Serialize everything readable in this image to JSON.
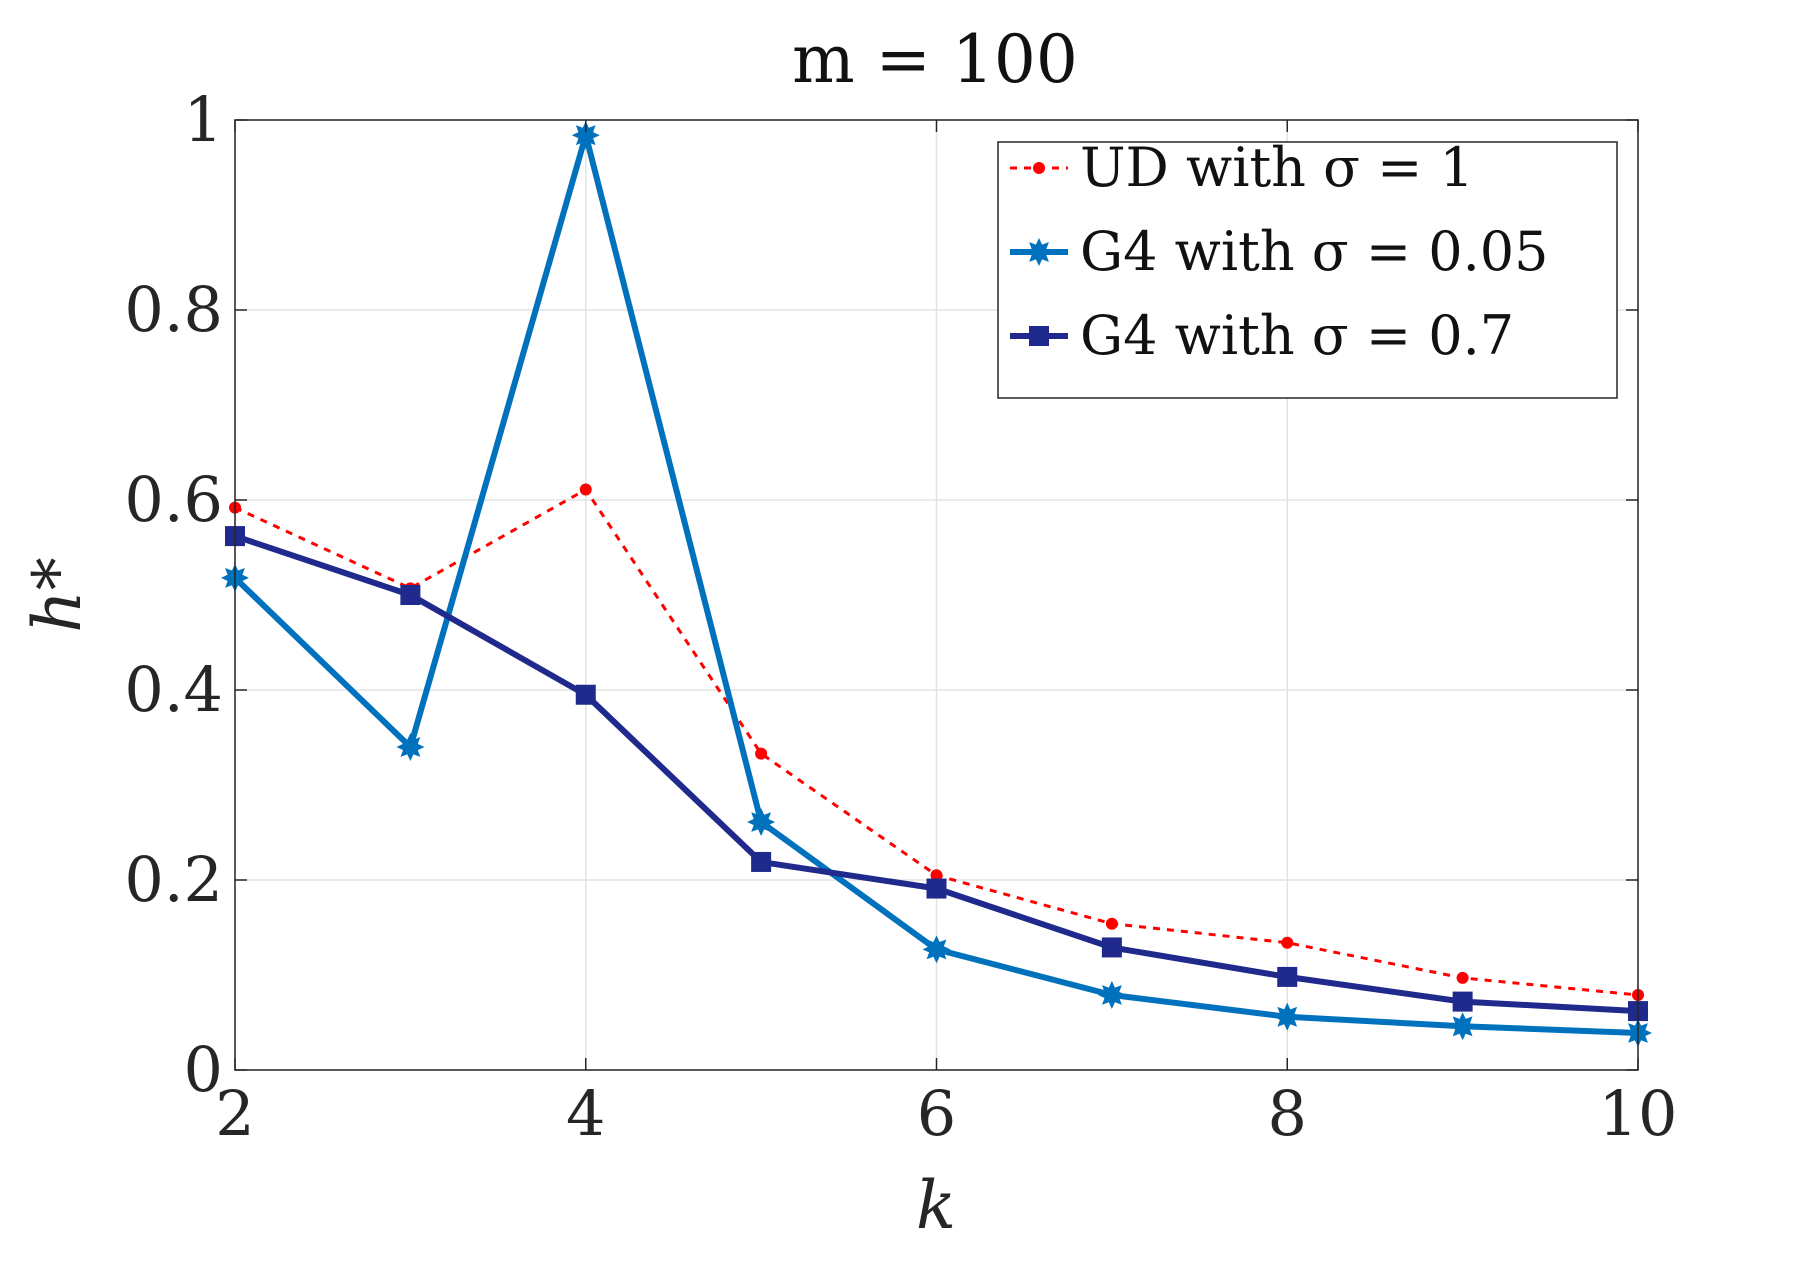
{
  "chart_data": {
    "type": "line",
    "title": "m = 100",
    "xlabel": "k",
    "ylabel": "h*",
    "xlim": [
      2,
      10
    ],
    "ylim": [
      0,
      1
    ],
    "x": [
      2,
      3,
      4,
      5,
      6,
      7,
      8,
      9,
      10
    ],
    "xticks": [
      2,
      4,
      6,
      8,
      10
    ],
    "xtick_labels": [
      "2",
      "4",
      "6",
      "8",
      "10"
    ],
    "yticks": [
      0,
      0.2,
      0.4,
      0.6,
      0.8,
      1
    ],
    "ytick_labels": [
      "0",
      "0.2",
      "0.4",
      "0.6",
      "0.8",
      "1"
    ],
    "grid": true,
    "legend_position": "top-right",
    "series": [
      {
        "name": "UD with σ = 1",
        "color": "#ff0000",
        "style": "dotted",
        "marker": "dot",
        "values": [
          0.592,
          0.507,
          0.611,
          0.333,
          0.205,
          0.154,
          0.134,
          0.097,
          0.079
        ]
      },
      {
        "name": "G4 with σ = 0.05",
        "color": "#0072bd",
        "style": "solid",
        "marker": "star",
        "values": [
          0.518,
          0.34,
          0.984,
          0.261,
          0.127,
          0.079,
          0.056,
          0.046,
          0.039
        ]
      },
      {
        "name": "G4 with σ = 0.7",
        "color": "#1f2a8c",
        "style": "solid",
        "marker": "square",
        "values": [
          0.562,
          0.5,
          0.395,
          0.219,
          0.191,
          0.129,
          0.098,
          0.072,
          0.062
        ]
      }
    ]
  }
}
